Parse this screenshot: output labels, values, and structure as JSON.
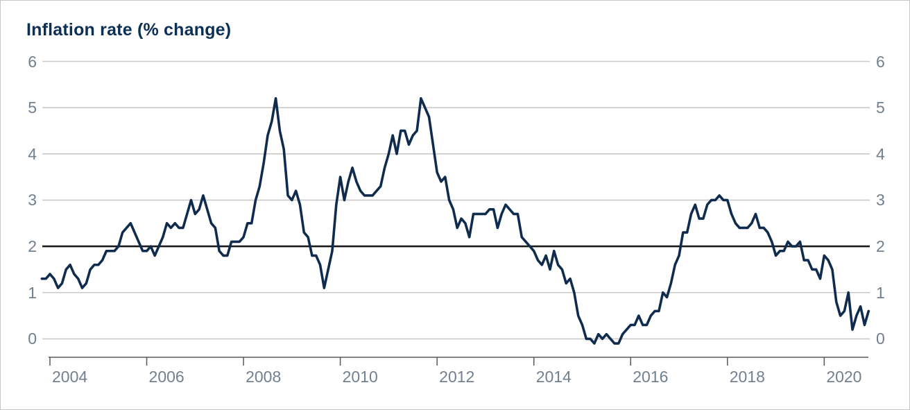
{
  "page": {
    "title": "Inflation rate (% change)"
  },
  "colors": {
    "series_line": "#0f2c4e",
    "target_line": "#1a1a1a",
    "gridline": "#c9c9c9",
    "axis": "#58595b",
    "tick_label": "#71808f",
    "title_text": "#0b2f55",
    "background": "#ffffff",
    "frame_border": "#c6c6c6"
  },
  "chart_data": {
    "type": "line",
    "title": "Inflation rate (% change)",
    "xlabel": "",
    "ylabel": "",
    "grid": "horizontal",
    "legend_position": "none",
    "yticks": [
      0,
      1,
      2,
      3,
      4,
      5,
      6
    ],
    "ytick_labels_sides": "both",
    "xticks": [
      2004,
      2006,
      2008,
      2010,
      2012,
      2014,
      2016,
      2018,
      2020
    ],
    "ylim_gridlines": [
      0,
      6
    ],
    "target_line_value": 2,
    "series": [
      {
        "name": "Inflation rate",
        "frequency": "monthly",
        "start_month": "2003-11",
        "end_month": "2020-12",
        "values": [
          1.3,
          1.3,
          1.4,
          1.3,
          1.1,
          1.2,
          1.5,
          1.6,
          1.4,
          1.3,
          1.1,
          1.2,
          1.5,
          1.6,
          1.6,
          1.7,
          1.9,
          1.9,
          1.9,
          2.0,
          2.3,
          2.4,
          2.5,
          2.3,
          2.1,
          1.9,
          1.9,
          2.0,
          1.8,
          2.0,
          2.2,
          2.5,
          2.4,
          2.5,
          2.4,
          2.4,
          2.7,
          3.0,
          2.7,
          2.8,
          3.1,
          2.8,
          2.5,
          2.4,
          1.9,
          1.8,
          1.8,
          2.1,
          2.1,
          2.1,
          2.2,
          2.5,
          2.5,
          3.0,
          3.3,
          3.8,
          4.4,
          4.7,
          5.2,
          4.5,
          4.1,
          3.1,
          3.0,
          3.2,
          2.9,
          2.3,
          2.2,
          1.8,
          1.8,
          1.6,
          1.1,
          1.5,
          1.9,
          2.9,
          3.5,
          3.0,
          3.4,
          3.7,
          3.4,
          3.2,
          3.1,
          3.1,
          3.1,
          3.2,
          3.3,
          3.7,
          4.0,
          4.4,
          4.0,
          4.5,
          4.5,
          4.2,
          4.4,
          4.5,
          5.2,
          5.0,
          4.8,
          4.2,
          3.6,
          3.4,
          3.5,
          3.0,
          2.8,
          2.4,
          2.6,
          2.5,
          2.2,
          2.7,
          2.7,
          2.7,
          2.7,
          2.8,
          2.8,
          2.4,
          2.7,
          2.9,
          2.8,
          2.7,
          2.7,
          2.2,
          2.1,
          2.0,
          1.9,
          1.7,
          1.6,
          1.8,
          1.5,
          1.9,
          1.6,
          1.5,
          1.2,
          1.3,
          1.0,
          0.5,
          0.3,
          0.0,
          0.0,
          -0.1,
          0.1,
          0.0,
          0.1,
          0.0,
          -0.1,
          -0.1,
          0.1,
          0.2,
          0.3,
          0.3,
          0.5,
          0.3,
          0.3,
          0.5,
          0.6,
          0.6,
          1.0,
          0.9,
          1.2,
          1.6,
          1.8,
          2.3,
          2.3,
          2.7,
          2.9,
          2.6,
          2.6,
          2.9,
          3.0,
          3.0,
          3.1,
          3.0,
          3.0,
          2.7,
          2.5,
          2.4,
          2.4,
          2.4,
          2.5,
          2.7,
          2.4,
          2.4,
          2.3,
          2.1,
          1.8,
          1.9,
          1.9,
          2.1,
          2.0,
          2.0,
          2.1,
          1.7,
          1.7,
          1.5,
          1.5,
          1.3,
          1.8,
          1.7,
          1.5,
          0.8,
          0.5,
          0.6,
          1.0,
          0.2,
          0.5,
          0.7,
          0.3,
          0.6
        ]
      }
    ]
  }
}
